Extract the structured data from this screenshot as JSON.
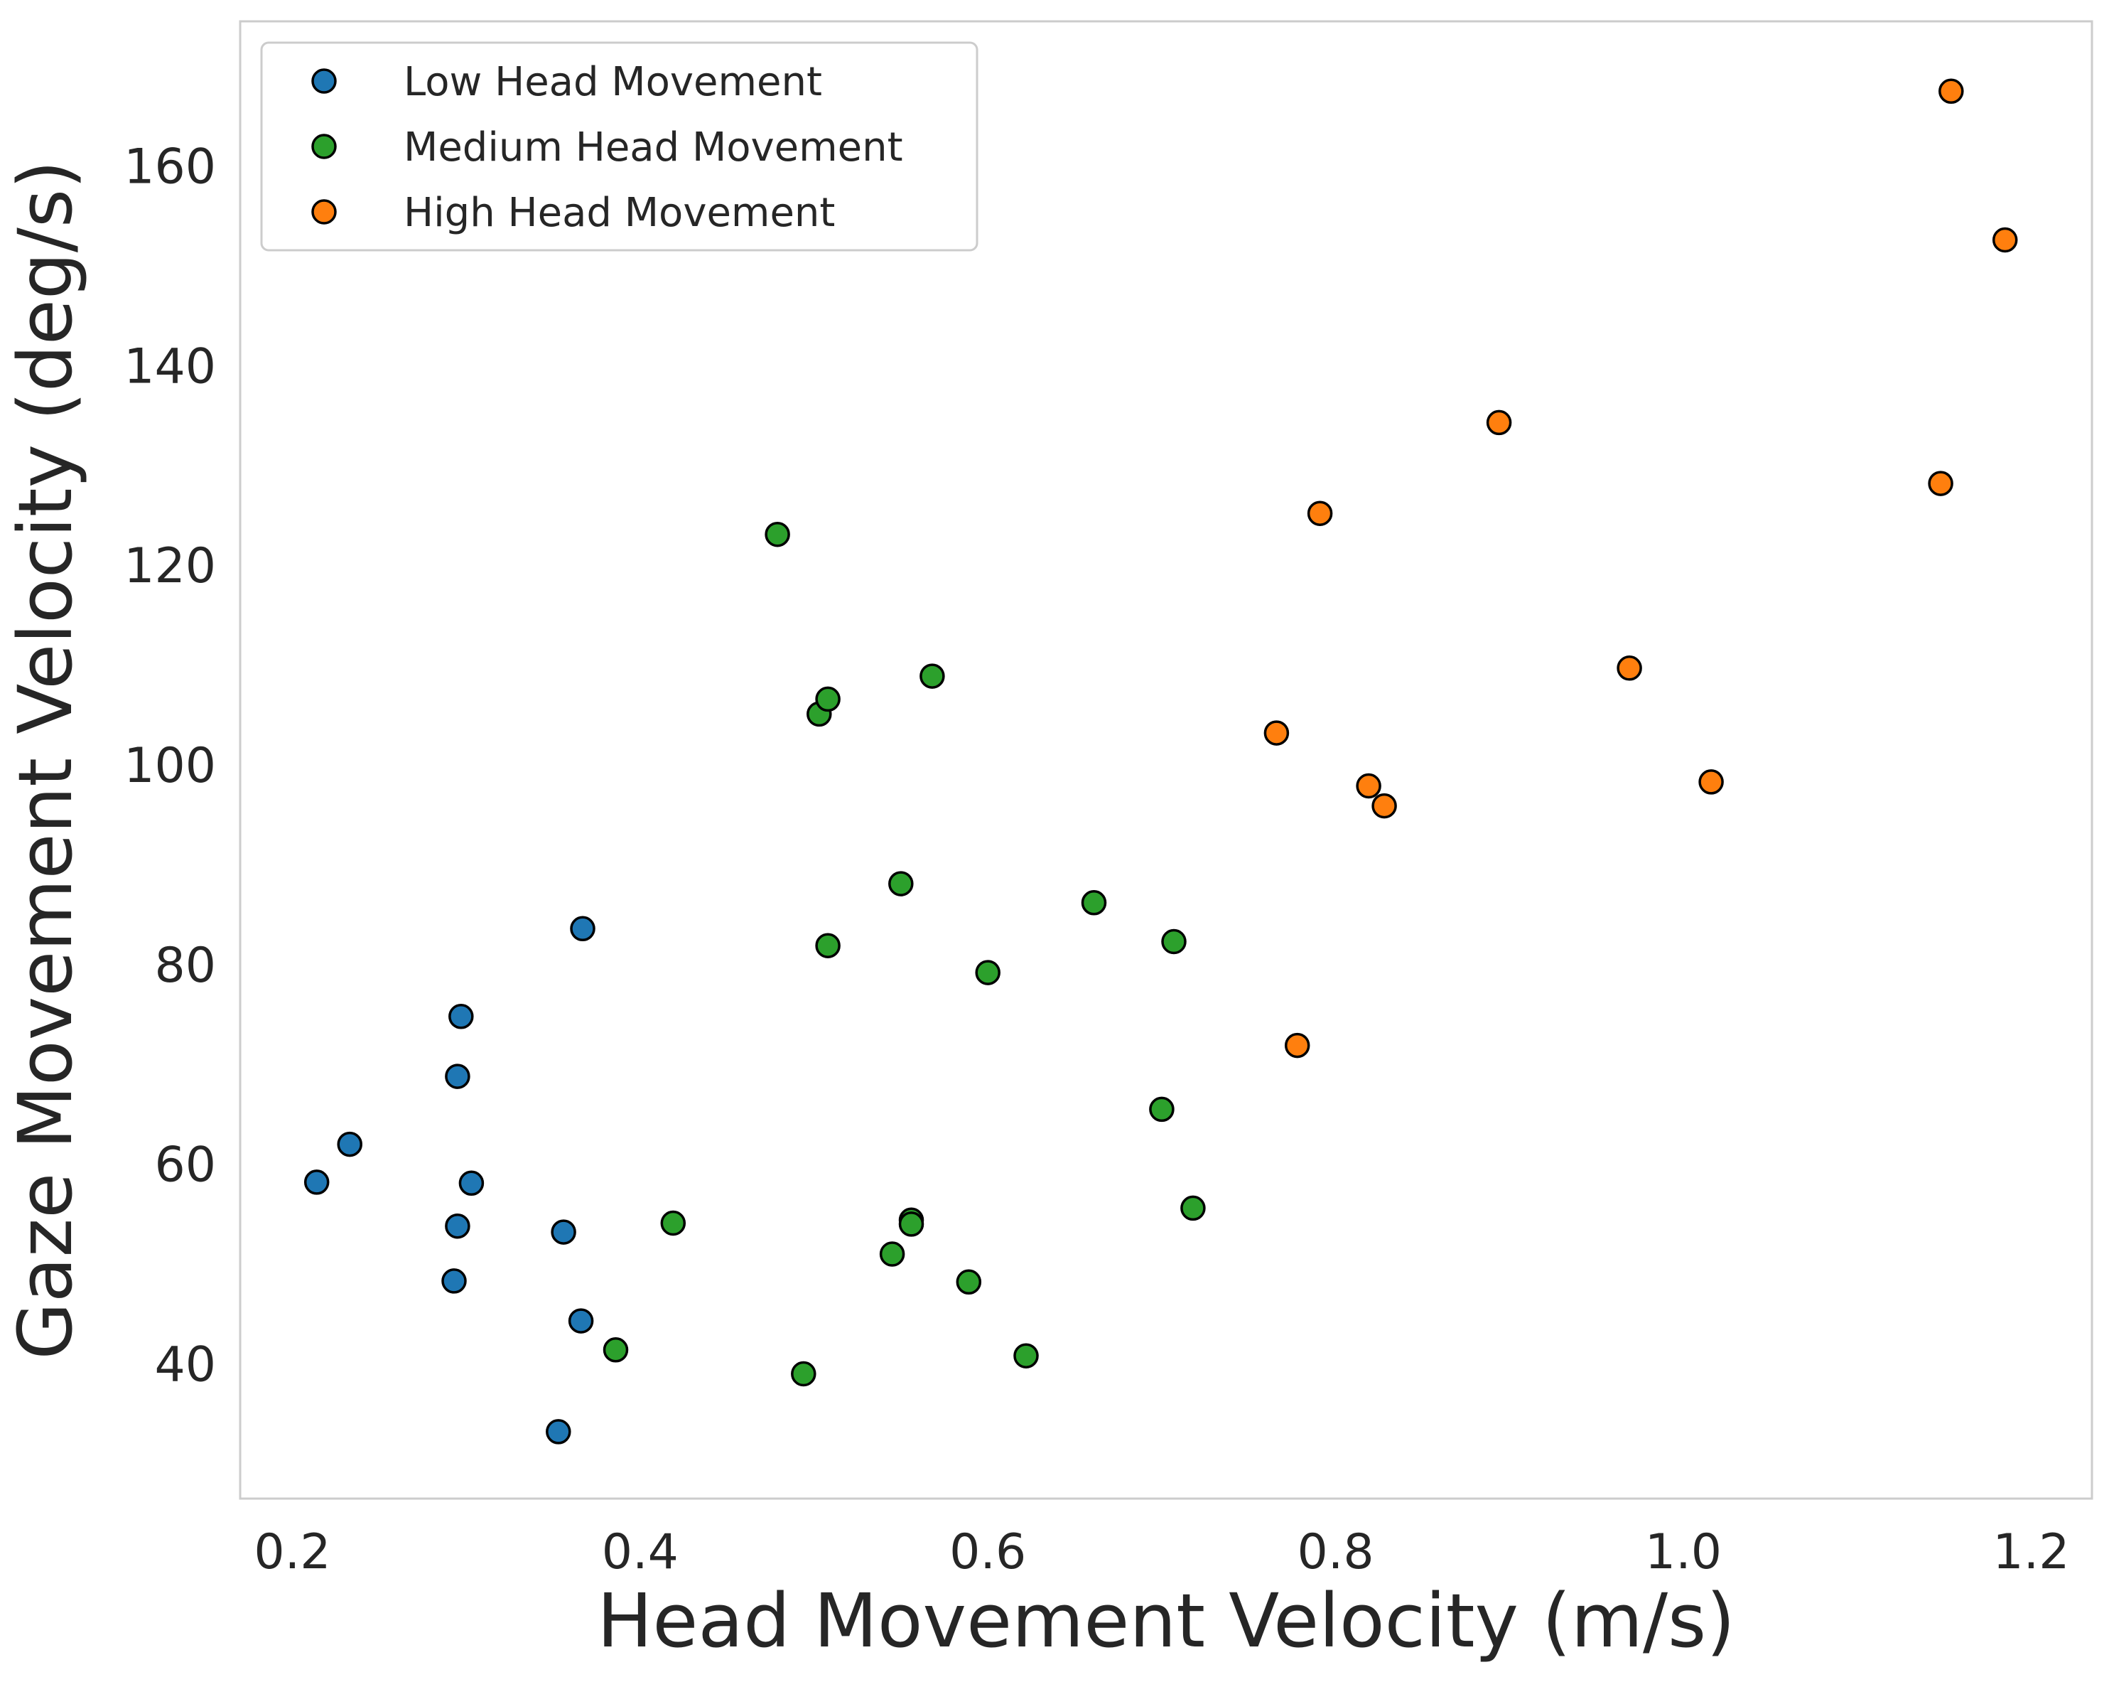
{
  "chart_data": {
    "type": "scatter",
    "title": "",
    "xlabel": "Head Movement Velocity (m/s)",
    "ylabel": "Gaze Movement Velocity (deg/s)",
    "xlim": [
      0.17,
      1.235
    ],
    "ylim": [
      26.5,
      174.5
    ],
    "xticks": [
      0.2,
      0.4,
      0.6,
      0.8,
      1.0,
      1.2
    ],
    "xtick_labels": [
      "0.2",
      "0.4",
      "0.6",
      "0.8",
      "1.0",
      "1.2"
    ],
    "yticks": [
      40,
      60,
      80,
      100,
      120,
      140,
      160
    ],
    "ytick_labels": [
      "40",
      "60",
      "80",
      "100",
      "120",
      "140",
      "160"
    ],
    "grid": false,
    "legend_position": "top-left",
    "series": [
      {
        "name": "Low Head Movement",
        "color": "#1f77b4",
        "points": [
          [
            0.214,
            58.2
          ],
          [
            0.233,
            62.0
          ],
          [
            0.293,
            48.3
          ],
          [
            0.295,
            53.8
          ],
          [
            0.295,
            68.8
          ],
          [
            0.297,
            74.8
          ],
          [
            0.303,
            58.1
          ],
          [
            0.353,
            33.2
          ],
          [
            0.356,
            53.2
          ],
          [
            0.366,
            44.3
          ],
          [
            0.367,
            83.6
          ]
        ]
      },
      {
        "name": "Medium Head Movement",
        "color": "#2ca02c",
        "points": [
          [
            0.386,
            41.4
          ],
          [
            0.419,
            54.1
          ],
          [
            0.479,
            123.1
          ],
          [
            0.494,
            39.0
          ],
          [
            0.503,
            105.1
          ],
          [
            0.508,
            106.6
          ],
          [
            0.508,
            81.9
          ],
          [
            0.545,
            51.0
          ],
          [
            0.55,
            88.1
          ],
          [
            0.556,
            54.4
          ],
          [
            0.556,
            54.0
          ],
          [
            0.568,
            108.9
          ],
          [
            0.589,
            48.2
          ],
          [
            0.6,
            79.2
          ],
          [
            0.622,
            40.8
          ],
          [
            0.661,
            86.2
          ],
          [
            0.7,
            65.5
          ],
          [
            0.707,
            82.3
          ],
          [
            0.718,
            55.6
          ]
        ]
      },
      {
        "name": "High Head Movement",
        "color": "#ff7f0e",
        "points": [
          [
            0.766,
            103.2
          ],
          [
            0.778,
            71.9
          ],
          [
            0.791,
            125.2
          ],
          [
            0.819,
            97.9
          ],
          [
            0.828,
            95.9
          ],
          [
            0.894,
            134.3
          ],
          [
            0.969,
            109.7
          ],
          [
            1.016,
            98.3
          ],
          [
            1.148,
            128.2
          ],
          [
            1.154,
            167.5
          ],
          [
            1.185,
            152.6
          ]
        ]
      }
    ]
  }
}
